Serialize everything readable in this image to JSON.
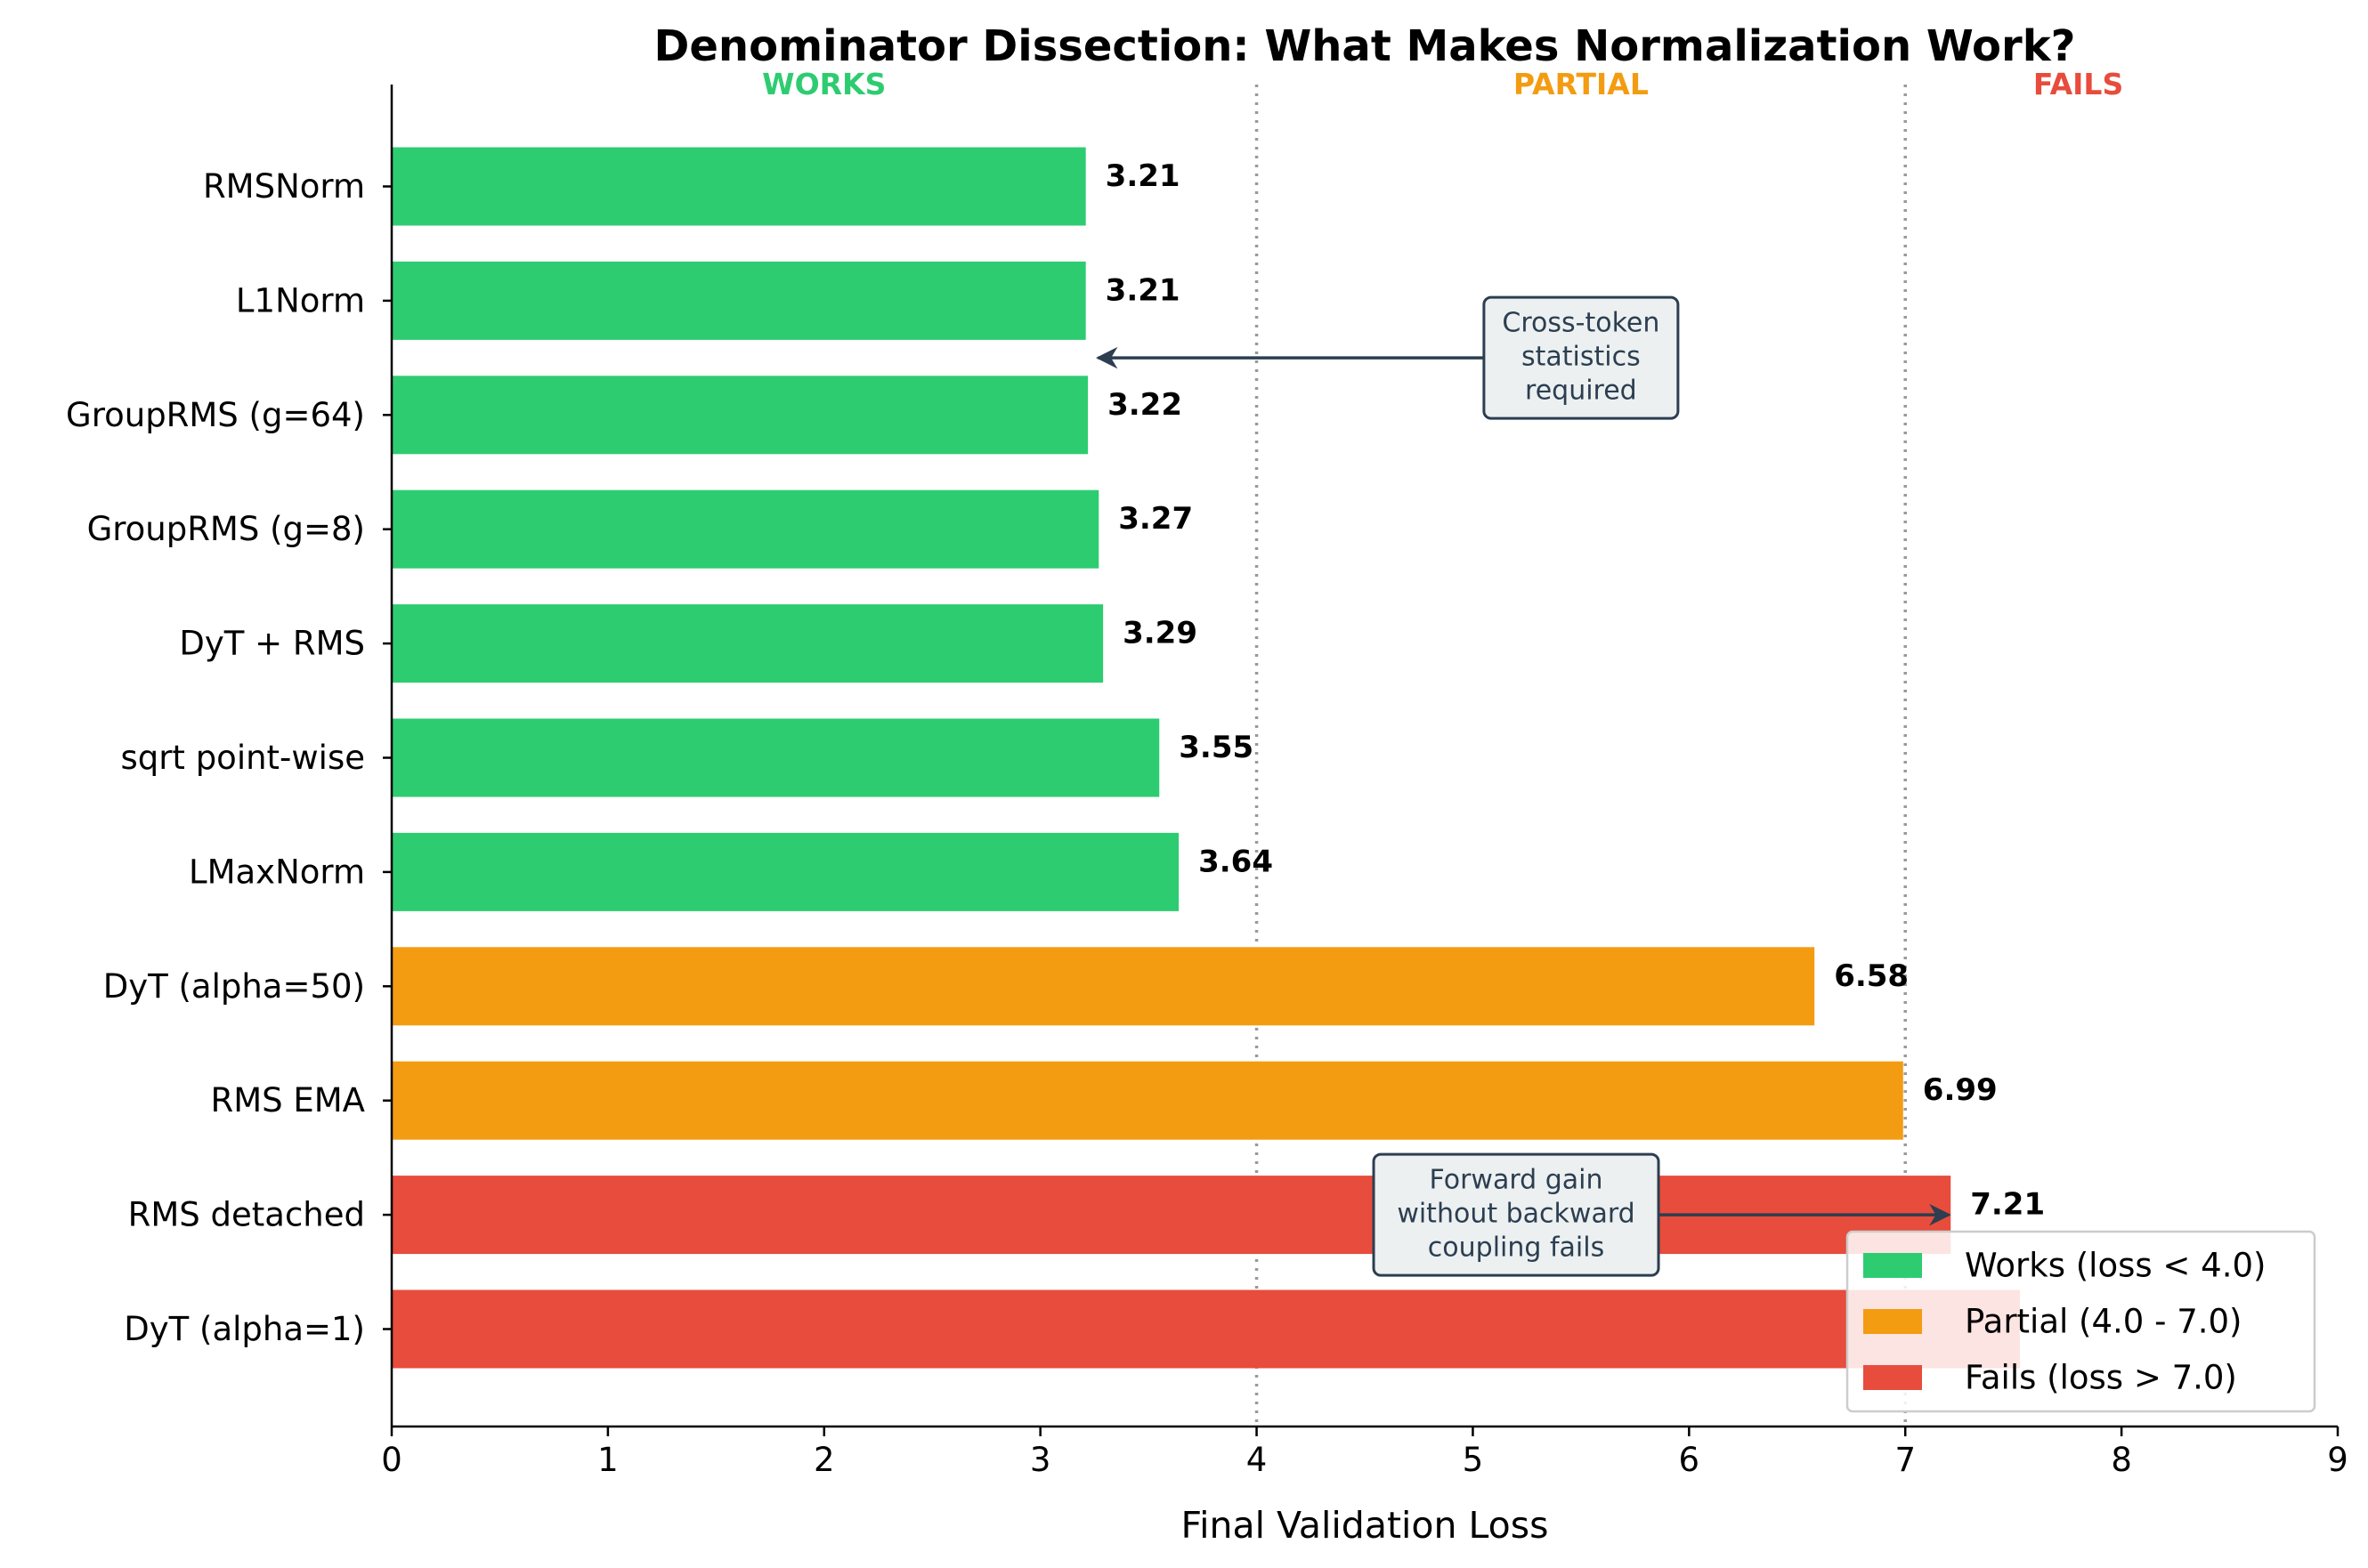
{
  "chart_data": {
    "type": "bar",
    "orientation": "horizontal",
    "title": "Denominator Dissection: What Makes Normalization Work?",
    "xlabel": "Final Validation Loss",
    "ylabel": "",
    "xlim": [
      0,
      9
    ],
    "xticks": [
      0,
      1,
      2,
      3,
      4,
      5,
      6,
      7,
      8,
      9
    ],
    "categories": [
      "RMSNorm",
      "L1Norm",
      "GroupRMS (g=64)",
      "GroupRMS (g=8)",
      "DyT + RMS",
      "sqrt point-wise",
      "LMaxNorm",
      "DyT (alpha=50)",
      "RMS EMA",
      "RMS detached",
      "DyT (alpha=1)"
    ],
    "values": [
      3.21,
      3.21,
      3.22,
      3.27,
      3.29,
      3.55,
      3.64,
      6.58,
      6.99,
      7.21,
      7.53
    ],
    "value_labels": [
      "3.21",
      "3.21",
      "3.22",
      "3.27",
      "3.29",
      "3.55",
      "3.64",
      "6.58",
      "6.99",
      "7.21",
      ""
    ],
    "groups": [
      "works",
      "works",
      "works",
      "works",
      "works",
      "works",
      "works",
      "partial",
      "partial",
      "fails",
      "fails"
    ],
    "colors": {
      "works": "#2ecc71",
      "partial": "#f39c12",
      "fails": "#e74c3c"
    },
    "thresholds": [
      4.0,
      7.0
    ],
    "zones": [
      {
        "label": "WORKS",
        "key": "works",
        "x": 2.0
      },
      {
        "label": "PARTIAL",
        "key": "partial",
        "x": 5.5
      },
      {
        "label": "FAILS",
        "key": "fails",
        "x": 7.8
      }
    ],
    "annotations": [
      {
        "lines": [
          "Cross-token",
          "statistics",
          "required"
        ],
        "text_x": 5.5,
        "category_index": 1.5,
        "arrow_to_x": 3.25,
        "arrow_to_category": 1.5
      },
      {
        "lines": [
          "Forward gain",
          "without backward",
          "coupling fails"
        ],
        "text_x": 5.2,
        "category_index": 9.0,
        "arrow_to_x": 7.21,
        "arrow_to_category": 9.0
      }
    ],
    "legend": {
      "position": "lower-right",
      "entries": [
        {
          "label": "Works (loss < 4.0)",
          "key": "works"
        },
        {
          "label": "Partial (4.0 - 7.0)",
          "key": "partial"
        },
        {
          "label": "Fails (loss > 7.0)",
          "key": "fails"
        }
      ]
    },
    "grid": false
  }
}
